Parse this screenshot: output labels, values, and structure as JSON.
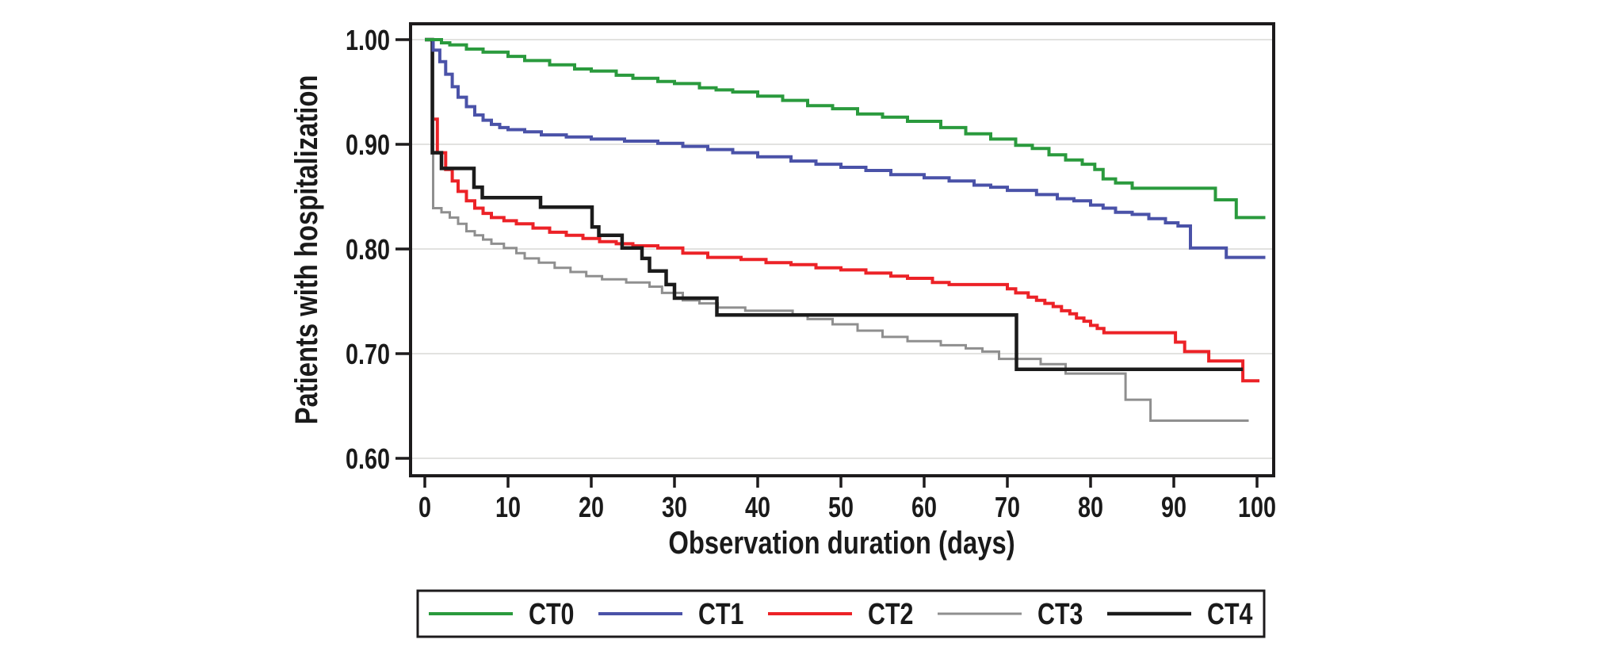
{
  "page": {
    "background": "#ffffff"
  },
  "chart_data": {
    "type": "line",
    "subtype": "kaplan-meier-step-curves",
    "title": "",
    "xlabel": "Observation duration (days)",
    "ylabel": "Patients with hospitalization",
    "xlim": [
      0,
      100
    ],
    "ylim": [
      0.6,
      1.0
    ],
    "xticks": [
      0,
      10,
      20,
      30,
      40,
      50,
      60,
      70,
      80,
      90,
      100
    ],
    "ytick_values": [
      1.0,
      0.9,
      0.8,
      0.7,
      0.6
    ],
    "ytick_labels": [
      "1.00",
      "0.90",
      "0.80",
      "0.70",
      "0.60"
    ],
    "grid": "horizontal-light",
    "frame": true,
    "legend_position": "bottom",
    "frame_color": "#1d1b1c",
    "grid_color": "#e2e2e0",
    "series": [
      {
        "name": "CT0",
        "color": "#2a9a3d",
        "stroke_width": 4,
        "points": [
          [
            0,
            1.0
          ],
          [
            2,
            0.997
          ],
          [
            3,
            0.995
          ],
          [
            5,
            0.991
          ],
          [
            7,
            0.988
          ],
          [
            10,
            0.984
          ],
          [
            12,
            0.98
          ],
          [
            15,
            0.976
          ],
          [
            18,
            0.972
          ],
          [
            20,
            0.97
          ],
          [
            23,
            0.966
          ],
          [
            25,
            0.963
          ],
          [
            28,
            0.96
          ],
          [
            30,
            0.958
          ],
          [
            33,
            0.954
          ],
          [
            35,
            0.952
          ],
          [
            37,
            0.95
          ],
          [
            40,
            0.946
          ],
          [
            43,
            0.942
          ],
          [
            46,
            0.937
          ],
          [
            49,
            0.934
          ],
          [
            52,
            0.929
          ],
          [
            55,
            0.926
          ],
          [
            58,
            0.922
          ],
          [
            62,
            0.916
          ],
          [
            65,
            0.91
          ],
          [
            68,
            0.905
          ],
          [
            71,
            0.899
          ],
          [
            73,
            0.896
          ],
          [
            75,
            0.89
          ],
          [
            77,
            0.885
          ],
          [
            79,
            0.881
          ],
          [
            80.5,
            0.876
          ],
          [
            81.5,
            0.867
          ],
          [
            83,
            0.863
          ],
          [
            85,
            0.858
          ],
          [
            95,
            0.847
          ],
          [
            97.5,
            0.83
          ],
          [
            101,
            0.83
          ]
        ]
      },
      {
        "name": "CT1",
        "color": "#4a52a8",
        "stroke_width": 4,
        "points": [
          [
            0.8,
            1.0
          ],
          [
            1,
            0.99
          ],
          [
            1.8,
            0.979
          ],
          [
            2.5,
            0.967
          ],
          [
            3.3,
            0.955
          ],
          [
            4,
            0.945
          ],
          [
            5,
            0.936
          ],
          [
            6,
            0.928
          ],
          [
            7,
            0.923
          ],
          [
            8,
            0.919
          ],
          [
            9,
            0.916
          ],
          [
            10,
            0.914
          ],
          [
            12,
            0.912
          ],
          [
            14,
            0.909
          ],
          [
            17,
            0.907
          ],
          [
            20,
            0.905
          ],
          [
            24,
            0.903
          ],
          [
            28,
            0.901
          ],
          [
            31,
            0.898
          ],
          [
            34,
            0.895
          ],
          [
            37,
            0.892
          ],
          [
            40,
            0.888
          ],
          [
            44,
            0.884
          ],
          [
            47,
            0.881
          ],
          [
            50,
            0.878
          ],
          [
            53,
            0.875
          ],
          [
            56,
            0.871
          ],
          [
            60,
            0.868
          ],
          [
            63,
            0.865
          ],
          [
            66,
            0.861
          ],
          [
            68,
            0.859
          ],
          [
            70,
            0.856
          ],
          [
            73.5,
            0.852
          ],
          [
            76,
            0.848
          ],
          [
            78,
            0.846
          ],
          [
            80,
            0.842
          ],
          [
            81.5,
            0.839
          ],
          [
            83,
            0.835
          ],
          [
            85,
            0.833
          ],
          [
            87,
            0.829
          ],
          [
            89,
            0.825
          ],
          [
            90.5,
            0.822
          ],
          [
            92,
            0.801
          ],
          [
            96.3,
            0.792
          ],
          [
            101,
            0.792
          ]
        ]
      },
      {
        "name": "CT2",
        "color": "#ec2227",
        "stroke_width": 4,
        "points": [
          [
            0.8,
            0.924
          ],
          [
            1.5,
            0.892
          ],
          [
            2.5,
            0.876
          ],
          [
            3.3,
            0.865
          ],
          [
            4,
            0.855
          ],
          [
            5,
            0.846
          ],
          [
            6,
            0.839
          ],
          [
            7,
            0.834
          ],
          [
            8,
            0.83
          ],
          [
            9.5,
            0.827
          ],
          [
            11,
            0.824
          ],
          [
            13,
            0.82
          ],
          [
            15,
            0.816
          ],
          [
            17,
            0.813
          ],
          [
            19,
            0.81
          ],
          [
            21,
            0.807
          ],
          [
            23,
            0.805
          ],
          [
            25,
            0.803
          ],
          [
            28,
            0.801
          ],
          [
            31,
            0.796
          ],
          [
            34,
            0.792
          ],
          [
            38,
            0.79
          ],
          [
            41,
            0.787
          ],
          [
            44,
            0.785
          ],
          [
            47,
            0.782
          ],
          [
            50,
            0.78
          ],
          [
            53,
            0.777
          ],
          [
            56,
            0.774
          ],
          [
            58,
            0.772
          ],
          [
            61,
            0.768
          ],
          [
            63,
            0.766
          ],
          [
            70,
            0.762
          ],
          [
            71,
            0.758
          ],
          [
            72.5,
            0.754
          ],
          [
            73.5,
            0.751
          ],
          [
            74.5,
            0.748
          ],
          [
            75.5,
            0.745
          ],
          [
            76.5,
            0.741
          ],
          [
            77.5,
            0.738
          ],
          [
            78.3,
            0.734
          ],
          [
            79.2,
            0.731
          ],
          [
            80,
            0.727
          ],
          [
            80.8,
            0.724
          ],
          [
            81.6,
            0.72
          ],
          [
            90.2,
            0.711
          ],
          [
            91.3,
            0.702
          ],
          [
            94.2,
            0.693
          ],
          [
            98.3,
            0.674
          ],
          [
            100.3,
            0.674
          ]
        ]
      },
      {
        "name": "CT3",
        "color": "#8f8f8f",
        "stroke_width": 3,
        "points": [
          [
            0.8,
            1.0
          ],
          [
            1,
            0.839
          ],
          [
            2,
            0.835
          ],
          [
            3,
            0.83
          ],
          [
            4,
            0.824
          ],
          [
            5,
            0.817
          ],
          [
            6,
            0.813
          ],
          [
            7,
            0.809
          ],
          [
            8,
            0.805
          ],
          [
            9.5,
            0.801
          ],
          [
            11,
            0.796
          ],
          [
            12,
            0.791
          ],
          [
            13.7,
            0.787
          ],
          [
            15.6,
            0.782
          ],
          [
            17.5,
            0.778
          ],
          [
            19.4,
            0.774
          ],
          [
            21.3,
            0.771
          ],
          [
            24.2,
            0.768
          ],
          [
            27,
            0.764
          ],
          [
            28.5,
            0.758
          ],
          [
            31,
            0.751
          ],
          [
            33,
            0.748
          ],
          [
            35.2,
            0.744
          ],
          [
            38.5,
            0.741
          ],
          [
            44.2,
            0.737
          ],
          [
            46,
            0.733
          ],
          [
            49,
            0.728
          ],
          [
            52,
            0.722
          ],
          [
            55,
            0.716
          ],
          [
            58,
            0.712
          ],
          [
            62,
            0.708
          ],
          [
            65,
            0.705
          ],
          [
            67,
            0.702
          ],
          [
            69,
            0.695
          ],
          [
            74,
            0.69
          ],
          [
            77,
            0.681
          ],
          [
            84.2,
            0.656
          ],
          [
            87.2,
            0.636
          ],
          [
            99,
            0.636
          ]
        ]
      },
      {
        "name": "CT4",
        "color": "#1b1b1b",
        "stroke_width": 4.5,
        "points": [
          [
            0,
            1.0
          ],
          [
            0.9,
            0.892
          ],
          [
            2,
            0.877
          ],
          [
            5.9,
            0.859
          ],
          [
            6.9,
            0.849
          ],
          [
            13.9,
            0.84
          ],
          [
            20.1,
            0.821
          ],
          [
            20.9,
            0.813
          ],
          [
            23.7,
            0.801
          ],
          [
            26.1,
            0.791
          ],
          [
            27,
            0.779
          ],
          [
            29,
            0.766
          ],
          [
            30,
            0.753
          ],
          [
            35.1,
            0.737
          ],
          [
            71.1,
            0.685
          ],
          [
            98.3,
            0.685
          ]
        ]
      }
    ]
  }
}
